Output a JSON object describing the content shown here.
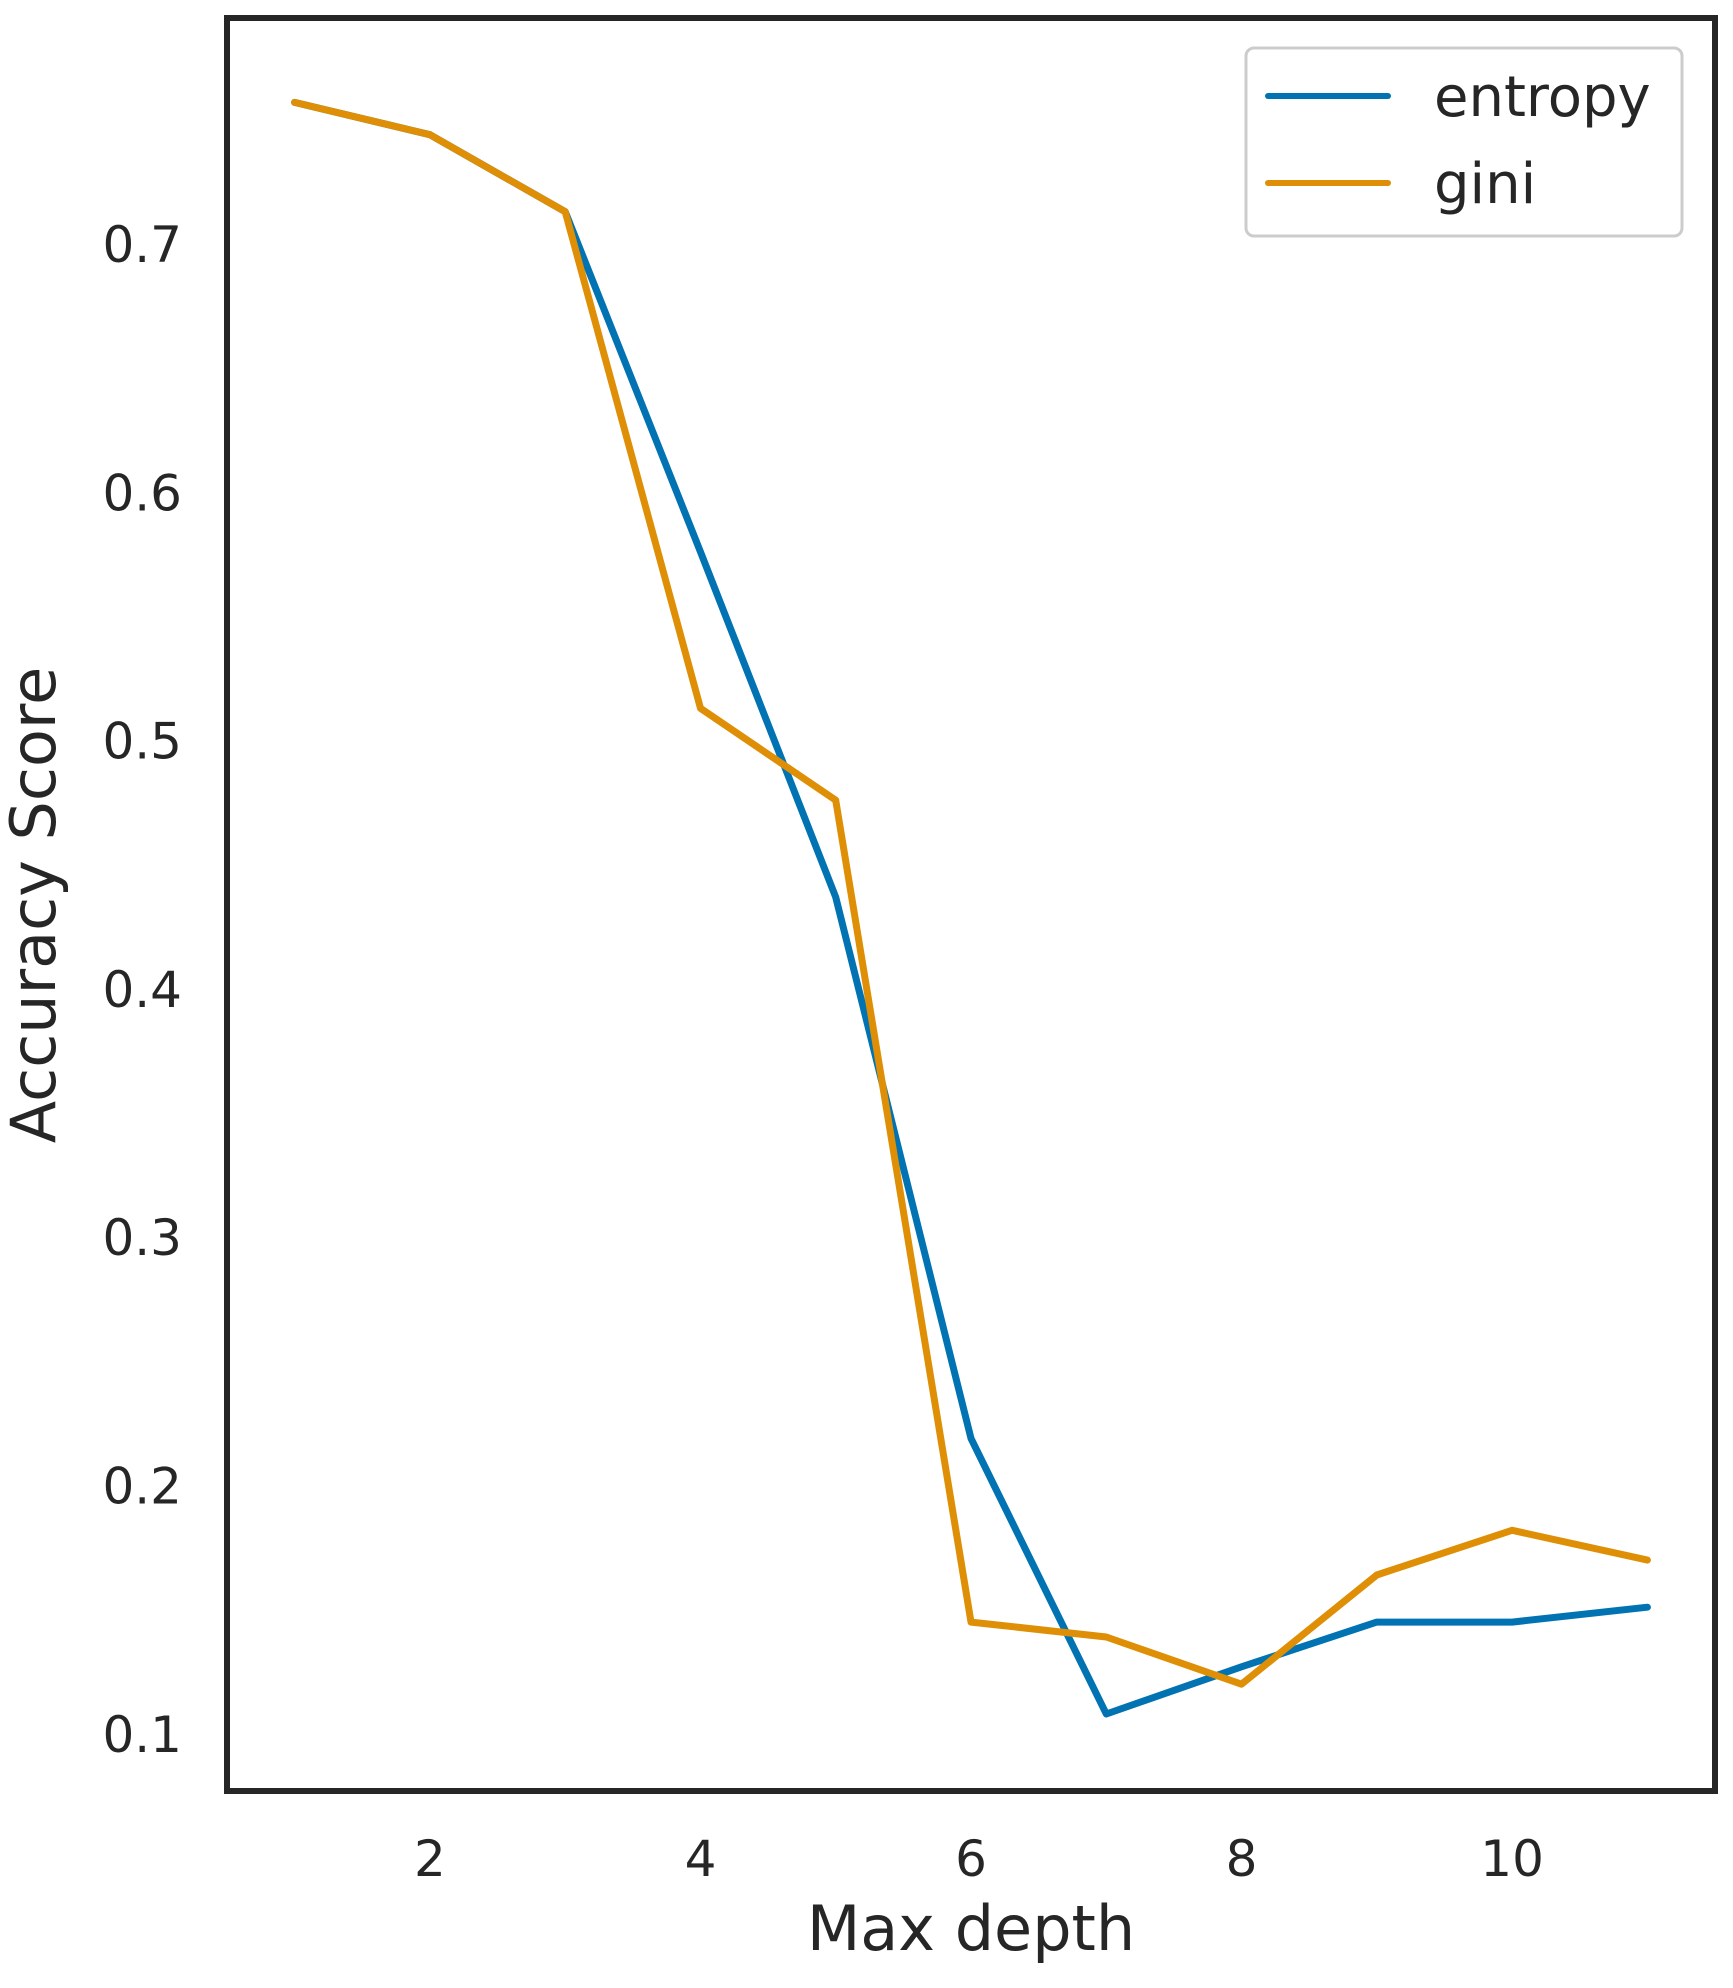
{
  "chart_data": {
    "type": "line",
    "title": "",
    "xlabel": "Max depth",
    "ylabel": "Accuracy Score",
    "xlim": [
      0.5,
      11.5
    ],
    "ylim": [
      0.077,
      0.791
    ],
    "xticks": [
      2,
      4,
      6,
      8,
      10
    ],
    "xtick_labels": [
      "2",
      "4",
      "6",
      "8",
      "10"
    ],
    "yticks": [
      0.1,
      0.2,
      0.3,
      0.4,
      0.5,
      0.6,
      0.7
    ],
    "ytick_labels": [
      "0.1",
      "0.2",
      "0.3",
      "0.4",
      "0.5",
      "0.6",
      "0.7"
    ],
    "grid": false,
    "legend_position": "top-right",
    "x": [
      1,
      2,
      3,
      4,
      5,
      6,
      7,
      8,
      9,
      10,
      11
    ],
    "series": [
      {
        "name": "entropy",
        "color": "#0173b2",
        "values": [
          0.757,
          0.744,
          0.713,
          0.576,
          0.437,
          0.219,
          0.108,
          0.127,
          0.145,
          0.145,
          0.151
        ]
      },
      {
        "name": "gini",
        "color": "#de8f05",
        "values": [
          0.757,
          0.744,
          0.713,
          0.513,
          0.476,
          0.145,
          0.139,
          0.12,
          0.164,
          0.182,
          0.17
        ]
      }
    ]
  }
}
